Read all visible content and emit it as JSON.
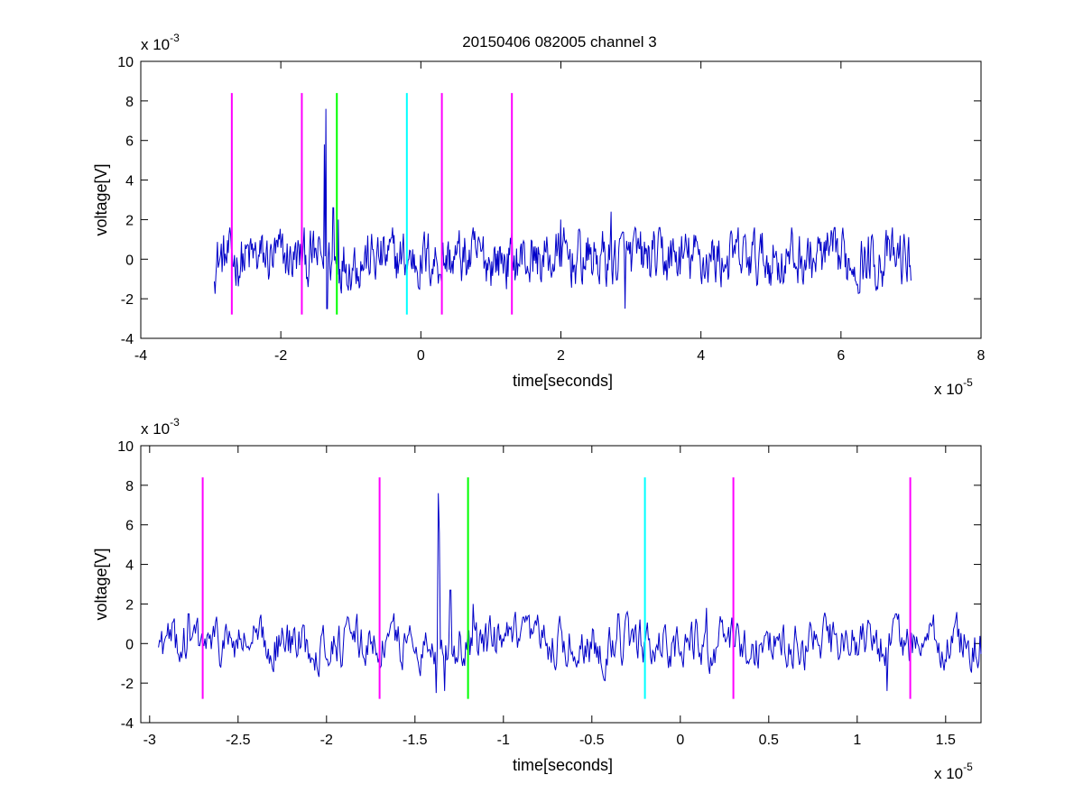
{
  "figure": {
    "title": "20150406 082005 channel 3"
  },
  "chart_data": [
    {
      "type": "line",
      "xlabel": "time[seconds]",
      "ylabel": "voltage[V]",
      "x_exponent": "x 10",
      "x_exponent_power": "-5",
      "y_exponent": "x 10",
      "y_exponent_power": "-3",
      "xlim": [
        -4,
        8
      ],
      "ylim": [
        -4,
        10
      ],
      "xticks": [
        -4,
        -2,
        0,
        2,
        4,
        6,
        8
      ],
      "xtick_labels": [
        "-4",
        "-2",
        "0",
        "2",
        "4",
        "6",
        "8"
      ],
      "yticks": [
        -4,
        -2,
        0,
        2,
        4,
        6,
        8,
        10
      ],
      "ytick_labels": [
        "-4",
        "-2",
        "0",
        "2",
        "4",
        "6",
        "8",
        "10"
      ],
      "grid": false,
      "series": [
        {
          "color": "#0000c8",
          "x_range": [
            -2.95,
            7.0
          ],
          "noise_amplitude": 0.9,
          "spikes": [
            {
              "x": -1.36,
              "y": 7.6
            },
            {
              "x": -1.38,
              "y": 5.8
            },
            {
              "x": -1.34,
              "y": -2.5
            },
            {
              "x": -1.25,
              "y": 2.6
            },
            {
              "x": -1.18,
              "y": 2.0
            },
            {
              "x": 2.0,
              "y": 2.0
            },
            {
              "x": 2.72,
              "y": 2.4
            },
            {
              "x": 2.92,
              "y": -2.5
            }
          ]
        }
      ],
      "markers": [
        {
          "x": -2.7,
          "color": "#ff00ff"
        },
        {
          "x": -1.7,
          "color": "#ff00ff"
        },
        {
          "x": -1.2,
          "color": "#00ff00"
        },
        {
          "x": -0.2,
          "color": "#00ffff"
        },
        {
          "x": 0.3,
          "color": "#ff00ff"
        },
        {
          "x": 1.3,
          "color": "#ff00ff"
        }
      ],
      "marker_y_range": [
        -2.8,
        8.4
      ]
    },
    {
      "type": "line",
      "xlabel": "time[seconds]",
      "ylabel": "voltage[V]",
      "x_exponent": "x 10",
      "x_exponent_power": "-5",
      "y_exponent": "x 10",
      "y_exponent_power": "-3",
      "xlim": [
        -3.05,
        1.7
      ],
      "ylim": [
        -4,
        10
      ],
      "xticks": [
        -3,
        -2.5,
        -2,
        -1.5,
        -1,
        -0.5,
        0,
        0.5,
        1,
        1.5
      ],
      "xtick_labels": [
        "-3",
        "-2.5",
        "-2",
        "-1.5",
        "-1",
        "-0.5",
        "0",
        "0.5",
        "1",
        "1.5"
      ],
      "yticks": [
        -4,
        -2,
        0,
        2,
        4,
        6,
        8,
        10
      ],
      "ytick_labels": [
        "-4",
        "-2",
        "0",
        "2",
        "4",
        "6",
        "8",
        "10"
      ],
      "grid": false,
      "series": [
        {
          "color": "#0000c8",
          "x_range": [
            -2.95,
            1.7
          ],
          "noise_amplitude": 0.75,
          "spikes": [
            {
              "x": -2.78,
              "y": 1.5
            },
            {
              "x": -1.37,
              "y": 7.6
            },
            {
              "x": -1.36,
              "y": 5.6
            },
            {
              "x": -1.38,
              "y": -2.5
            },
            {
              "x": -1.33,
              "y": -2.4
            },
            {
              "x": -1.3,
              "y": 2.7
            },
            {
              "x": -1.17,
              "y": 2.0
            },
            {
              "x": -0.35,
              "y": 1.5
            },
            {
              "x": 0.15,
              "y": 1.8
            },
            {
              "x": 1.17,
              "y": -2.4
            },
            {
              "x": 1.22,
              "y": 1.5
            }
          ]
        }
      ],
      "markers": [
        {
          "x": -2.7,
          "color": "#ff00ff"
        },
        {
          "x": -1.7,
          "color": "#ff00ff"
        },
        {
          "x": -1.2,
          "color": "#00ff00"
        },
        {
          "x": -0.2,
          "color": "#00ffff"
        },
        {
          "x": 0.3,
          "color": "#ff00ff"
        },
        {
          "x": 1.3,
          "color": "#ff00ff"
        }
      ],
      "marker_y_range": [
        -2.8,
        8.4
      ]
    }
  ]
}
